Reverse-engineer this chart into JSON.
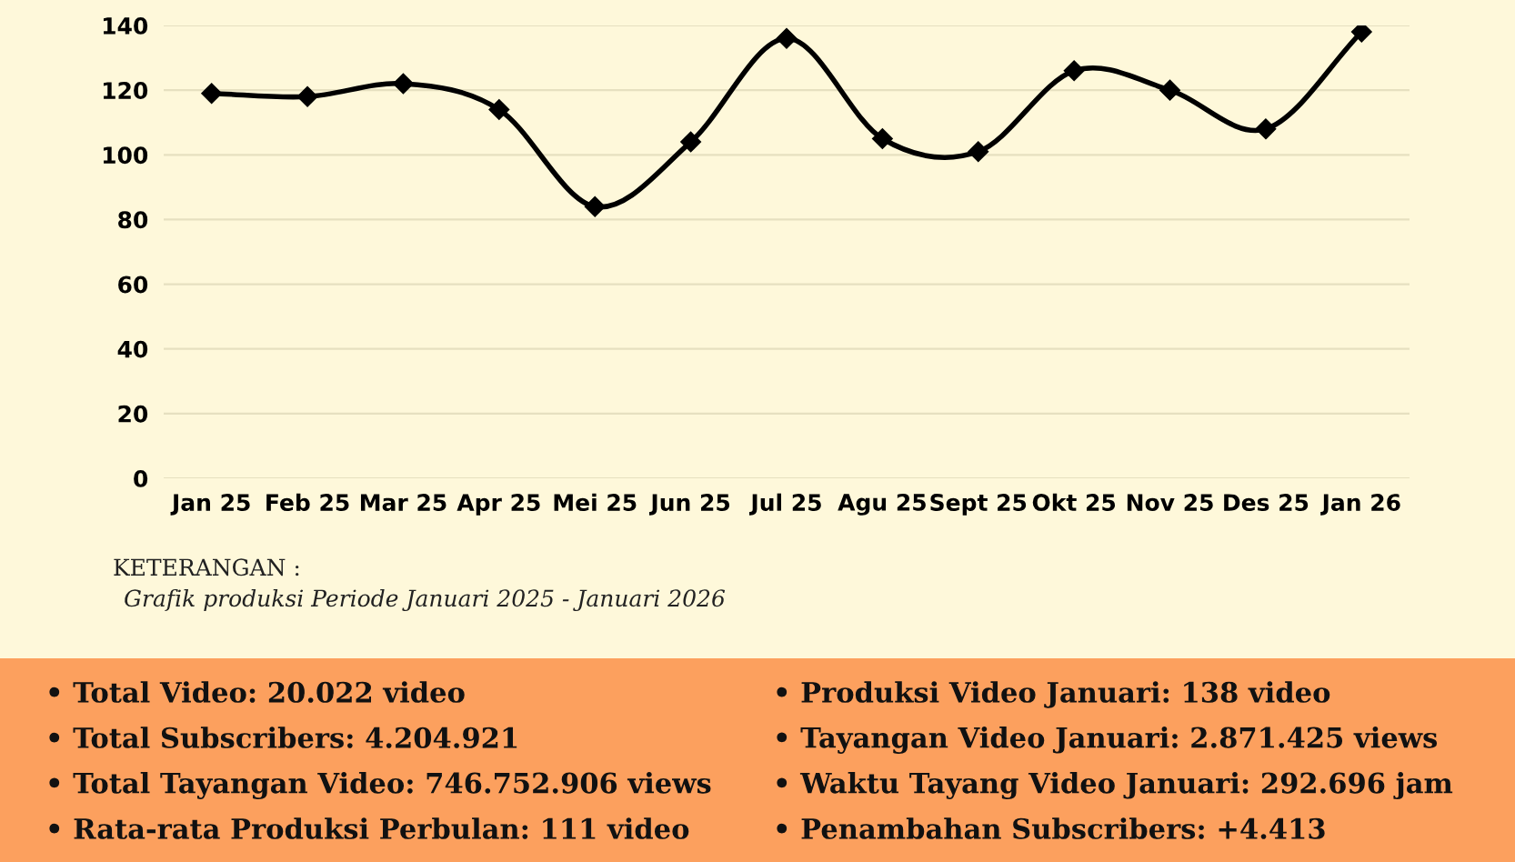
{
  "chart_data": {
    "type": "line",
    "categories": [
      "Jan 25",
      "Feb 25",
      "Mar 25",
      "Apr 25",
      "Mei 25",
      "Jun 25",
      "Jul 25",
      "Agu 25",
      "Sept 25",
      "Okt 25",
      "Nov 25",
      "Des 25",
      "Jan 26"
    ],
    "series": [
      {
        "color": "#000000",
        "values": [
          119,
          118,
          122,
          114,
          84,
          104,
          136,
          105,
          101,
          126,
          120,
          108,
          138
        ]
      }
    ],
    "ylim": [
      0,
      140
    ],
    "yticks": [
      0,
      20,
      40,
      60,
      80,
      100,
      120,
      140
    ],
    "grid": "y",
    "marker": "diamond",
    "line_style": "solid",
    "annotations": [
      "KETERANGAN :",
      "Grafik produksi Periode Januari 2025 - Januari 2026",
      "• Total Video: 20.022 video",
      "• Total Subscribers: 4.204.921",
      "• Total Tayangan Video: 746.752.906 views",
      "• Rata-rata Produksi Perbulan: 111 video",
      "• Produksi Video Januari: 138 video",
      "• Tayangan Video Januari: 2.871.425 views",
      "• Waktu Tayang Video Januari: 292.696 jam",
      "• Penambahan Subscribers: +4.413"
    ]
  }
}
